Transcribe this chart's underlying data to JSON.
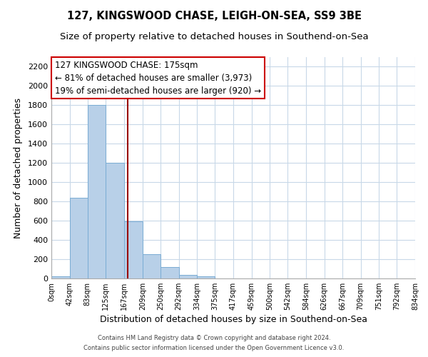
{
  "title": "127, KINGSWOOD CHASE, LEIGH-ON-SEA, SS9 3BE",
  "subtitle": "Size of property relative to detached houses in Southend-on-Sea",
  "xlabel": "Distribution of detached houses by size in Southend-on-Sea",
  "ylabel": "Number of detached properties",
  "footnote1": "Contains HM Land Registry data © Crown copyright and database right 2024.",
  "footnote2": "Contains public sector information licensed under the Open Government Licence v3.0.",
  "bin_edges": [
    0,
    42,
    83,
    125,
    167,
    209,
    250,
    292,
    334,
    375,
    417,
    459,
    500,
    542,
    584,
    626,
    667,
    709,
    751,
    792,
    834
  ],
  "bin_labels": [
    "0sqm",
    "42sqm",
    "83sqm",
    "125sqm",
    "167sqm",
    "209sqm",
    "250sqm",
    "292sqm",
    "334sqm",
    "375sqm",
    "417sqm",
    "459sqm",
    "500sqm",
    "542sqm",
    "584sqm",
    "626sqm",
    "667sqm",
    "709sqm",
    "751sqm",
    "792sqm",
    "834sqm"
  ],
  "bar_heights": [
    25,
    840,
    1800,
    1200,
    590,
    255,
    120,
    40,
    20,
    0,
    0,
    0,
    0,
    0,
    0,
    0,
    0,
    0,
    0,
    0
  ],
  "bar_color": "#b8d0e8",
  "bar_edge_color": "#7aacd4",
  "property_value": 175,
  "vline_x": 175,
  "vline_color": "#990000",
  "annotation_title": "127 KINGSWOOD CHASE: 175sqm",
  "annotation_line1": "← 81% of detached houses are smaller (3,973)",
  "annotation_line2": "19% of semi-detached houses are larger (920) →",
  "annotation_box_color": "#ffffff",
  "annotation_box_edge": "#cc0000",
  "ylim": [
    0,
    2300
  ],
  "yticks": [
    0,
    200,
    400,
    600,
    800,
    1000,
    1200,
    1400,
    1600,
    1800,
    2000,
    2200
  ],
  "grid_color": "#c8d8e8",
  "background_color": "#ffffff",
  "title_fontsize": 10.5,
  "subtitle_fontsize": 9.5
}
